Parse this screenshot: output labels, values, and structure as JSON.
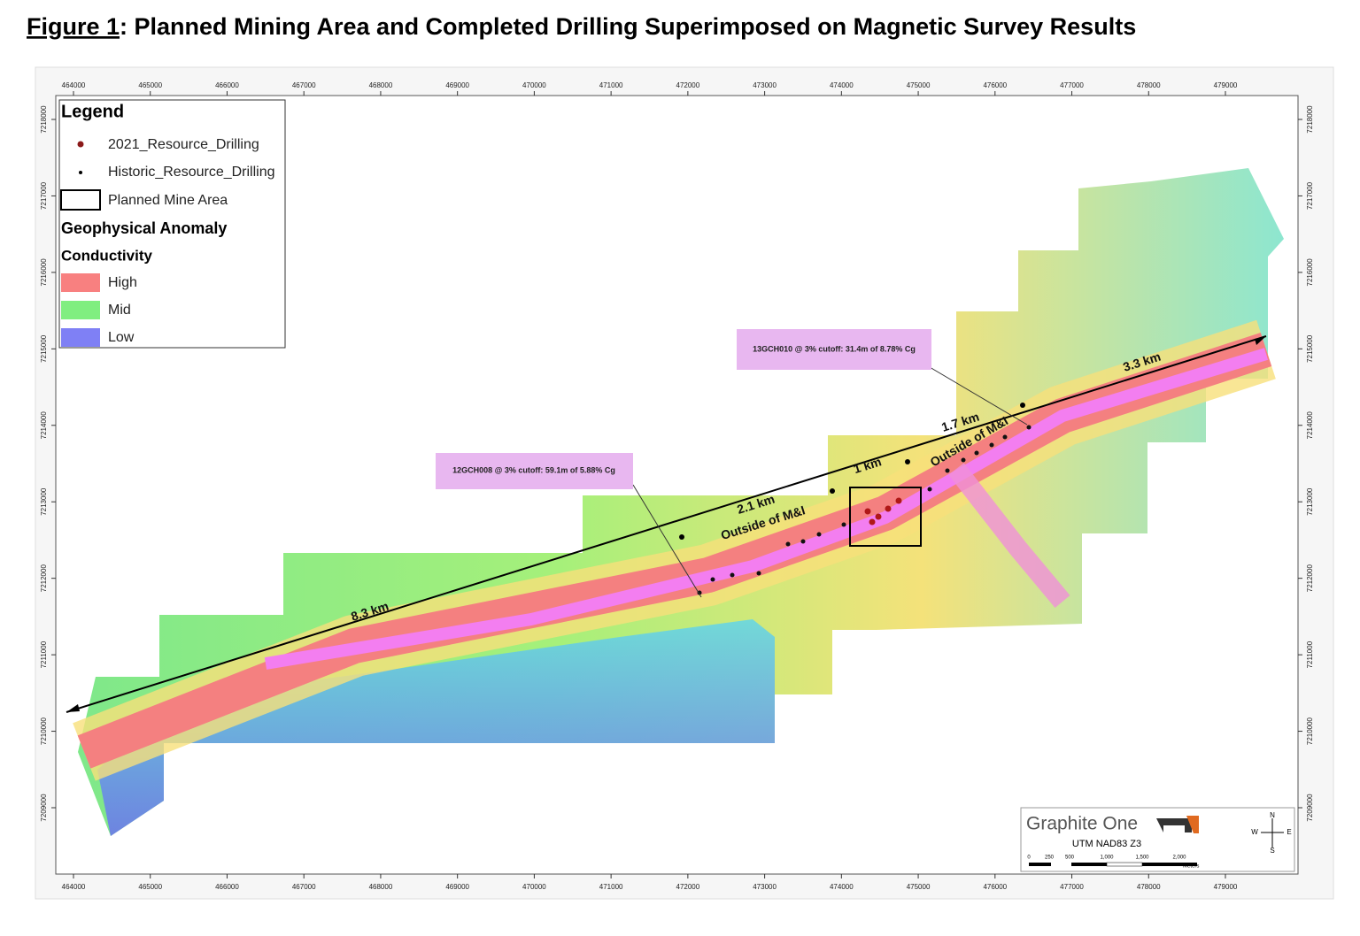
{
  "title": {
    "figure": "Figure 1",
    "text": ": Planned Mining Area and Completed Drilling Superimposed on Magnetic Survey Results"
  },
  "map": {
    "x_ticks": [
      464000,
      465000,
      466000,
      467000,
      468000,
      469000,
      470000,
      471000,
      472000,
      473000,
      474000,
      475000,
      476000,
      477000,
      478000,
      479000
    ],
    "y_ticks": [
      7209000,
      7210000,
      7211000,
      7212000,
      7213000,
      7214000,
      7215000,
      7216000,
      7217000,
      7218000
    ],
    "distances": [
      "8.3 km",
      "2.1 km",
      "1 km",
      "1.7 km",
      "3.3 km"
    ],
    "outside_labels": [
      "Outside of M&I",
      "Outside of M&I"
    ],
    "annotations": [
      "12GCH008 @ 3% cutoff: 59.1m of 5.88% Cg",
      "13GCH010 @ 3% cutoff: 31.4m of 8.78% Cg"
    ]
  },
  "legend": {
    "title": "Legend",
    "items": [
      "2021_Resource_Drilling",
      "Historic_Resource_Drilling",
      "Planned Mine Area"
    ],
    "section": "Geophysical Anomaly",
    "subsection": "Conductivity",
    "classes": [
      "High",
      "Mid",
      "Low"
    ]
  },
  "logo": {
    "name": "Graphite One",
    "projection": "UTM NAD83 Z3",
    "scale": [
      "0",
      "250",
      "500",
      "1,000",
      "1,500",
      "2,000"
    ],
    "unit": "Meters",
    "compass": [
      "N",
      "S",
      "W",
      "E"
    ]
  }
}
